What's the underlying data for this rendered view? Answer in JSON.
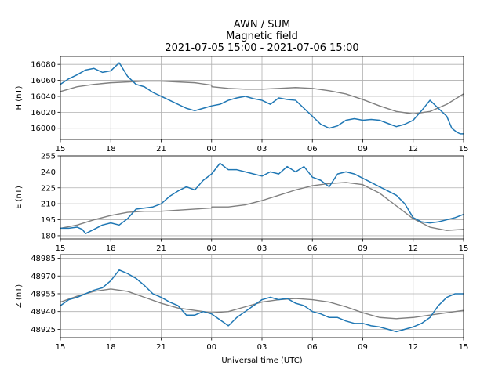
{
  "title": {
    "line1": "AWN / SUM",
    "line2": "Magnetic field",
    "line3": "2021-07-05 15:00 - 2021-07-06 15:00"
  },
  "colors": {
    "measured": "#1f77b4",
    "model": "#808080",
    "grid": "#b0b0b0"
  },
  "chart_data": [
    {
      "type": "line",
      "ylabel": "H (nT)",
      "xlabel": "",
      "ylim": [
        15986,
        16090
      ],
      "yticks": [
        16000,
        16020,
        16040,
        16060,
        16080
      ],
      "xticks": [
        "15",
        "18",
        "21",
        "00",
        "03",
        "06",
        "09",
        "12",
        "15"
      ],
      "xlim": [
        0,
        24
      ],
      "grid": true,
      "series": [
        {
          "key": "measured",
          "x": [
            0,
            0.5,
            1,
            1.5,
            2,
            2.5,
            3,
            3.5,
            4,
            4.5,
            5,
            5.5,
            6,
            6.5,
            7,
            7.5,
            8,
            8.5,
            9,
            9.5,
            10,
            10.5,
            11,
            11.5,
            12,
            12.5,
            13,
            13.5,
            14,
            14.5,
            15,
            15.5,
            16,
            16.5,
            17,
            17.5,
            18,
            18.5,
            19,
            19.5,
            20,
            20.5,
            21,
            21.5,
            22,
            22.5,
            23,
            23.3,
            23.6,
            23.8,
            24
          ],
          "y": [
            16055,
            16062,
            16067,
            16073,
            16075,
            16070,
            16072,
            16082,
            16065,
            16055,
            16052,
            16045,
            16040,
            16035,
            16030,
            16025,
            16022,
            16025,
            16028,
            16030,
            16035,
            16038,
            16040,
            16037,
            16035,
            16030,
            16038,
            16036,
            16035,
            16025,
            16015,
            16005,
            16000,
            16003,
            16010,
            16012,
            16010,
            16011,
            16010,
            16006,
            16002,
            16005,
            16010,
            16022,
            16035,
            16025,
            16015,
            16000,
            15995,
            15993,
            15993
          ]
        },
        {
          "key": "model",
          "x": [
            0,
            1,
            2,
            3,
            4,
            5,
            6,
            7,
            8,
            9,
            9.01,
            10,
            11,
            12,
            13,
            14,
            15,
            16,
            17,
            18,
            19,
            20,
            21,
            22,
            23,
            24
          ],
          "y": [
            16046,
            16052,
            16055,
            16057,
            16058,
            16059,
            16059,
            16058,
            16057,
            16054,
            16052,
            16050,
            16049,
            16049,
            16050,
            16051,
            16050,
            16047,
            16043,
            16036,
            16028,
            16021,
            16018,
            16021,
            16030,
            16043
          ]
        }
      ]
    },
    {
      "type": "line",
      "ylabel": "E (nT)",
      "xlabel": "",
      "ylim": [
        177,
        255
      ],
      "yticks": [
        180,
        195,
        210,
        225,
        240,
        255
      ],
      "xticks": [
        "15",
        "18",
        "21",
        "00",
        "03",
        "06",
        "09",
        "12",
        "15"
      ],
      "xlim": [
        0,
        24
      ],
      "grid": true,
      "series": [
        {
          "key": "measured",
          "x": [
            0,
            0.5,
            1,
            1.3,
            1.5,
            2,
            2.5,
            3,
            3.5,
            4,
            4.5,
            5,
            5.5,
            6,
            6.5,
            7,
            7.5,
            8,
            8.5,
            9,
            9.5,
            10,
            10.5,
            11,
            11.5,
            12,
            12.5,
            13,
            13.5,
            14,
            14.5,
            15,
            15.5,
            16,
            16.5,
            17,
            17.5,
            18,
            18.5,
            19,
            19.5,
            20,
            20.5,
            21,
            21.5,
            22,
            22.5,
            23,
            23.5,
            24
          ],
          "y": [
            187,
            187,
            188,
            186,
            182,
            186,
            190,
            192,
            190,
            196,
            205,
            206,
            207,
            210,
            217,
            222,
            226,
            223,
            232,
            238,
            248,
            242,
            242,
            240,
            238,
            236,
            240,
            238,
            245,
            240,
            245,
            235,
            232,
            226,
            238,
            240,
            238,
            234,
            230,
            226,
            222,
            218,
            210,
            197,
            193,
            192,
            193,
            195,
            197,
            200
          ]
        },
        {
          "key": "model",
          "x": [
            0,
            1,
            2,
            3,
            4,
            5,
            6,
            7,
            8,
            9,
            9.01,
            10,
            11,
            12,
            13,
            14,
            15,
            16,
            17,
            18,
            19,
            20,
            21,
            22,
            23,
            24
          ],
          "y": [
            187,
            190,
            195,
            199,
            202,
            203,
            203,
            204,
            205,
            206,
            207,
            207,
            209,
            213,
            218,
            223,
            227,
            229,
            230,
            228,
            220,
            208,
            196,
            188,
            185,
            186
          ]
        }
      ]
    },
    {
      "type": "line",
      "ylabel": "Z (nT)",
      "xlabel": "Universal time (UTC)",
      "ylim": [
        48918,
        48988
      ],
      "yticks": [
        48925,
        48940,
        48955,
        48970,
        48985
      ],
      "xticks": [
        "15",
        "18",
        "21",
        "00",
        "03",
        "06",
        "09",
        "12",
        "15"
      ],
      "xlim": [
        0,
        24
      ],
      "grid": true,
      "series": [
        {
          "key": "measured",
          "x": [
            0,
            0.5,
            1,
            1.5,
            2,
            2.5,
            3,
            3.5,
            4,
            4.5,
            5,
            5.5,
            6,
            6.5,
            7,
            7.5,
            8,
            8.5,
            9,
            9.5,
            10,
            10.5,
            11,
            11.5,
            12,
            12.5,
            13,
            13.5,
            14,
            14.5,
            15,
            15.5,
            16,
            16.5,
            17,
            17.5,
            18,
            18.5,
            19,
            19.5,
            20,
            20.5,
            21,
            21.5,
            22,
            22.5,
            23,
            23.5,
            24
          ],
          "y": [
            48945,
            48950,
            48952,
            48955,
            48958,
            48960,
            48966,
            48975,
            48972,
            48968,
            48962,
            48955,
            48952,
            48948,
            48945,
            48937,
            48937,
            48940,
            48938,
            48933,
            48928,
            48935,
            48940,
            48945,
            48950,
            48952,
            48950,
            48951,
            48947,
            48945,
            48940,
            48938,
            48935,
            48935,
            48932,
            48930,
            48930,
            48928,
            48927,
            48925,
            48923,
            48925,
            48927,
            48930,
            48935,
            48945,
            48952,
            48955,
            48955
          ]
        },
        {
          "key": "model",
          "x": [
            0,
            1,
            2,
            3,
            4,
            5,
            6,
            7,
            8,
            9,
            10,
            11,
            12,
            13,
            14,
            15,
            16,
            17,
            18,
            19,
            20,
            21,
            22,
            23,
            24
          ],
          "y": [
            48948,
            48953,
            48957,
            48959,
            48957,
            48952,
            48947,
            48943,
            48941,
            48939,
            48940,
            48944,
            48948,
            48950,
            48951,
            48950,
            48948,
            48944,
            48939,
            48935,
            48934,
            48935,
            48937,
            48939,
            48941
          ]
        }
      ]
    }
  ]
}
